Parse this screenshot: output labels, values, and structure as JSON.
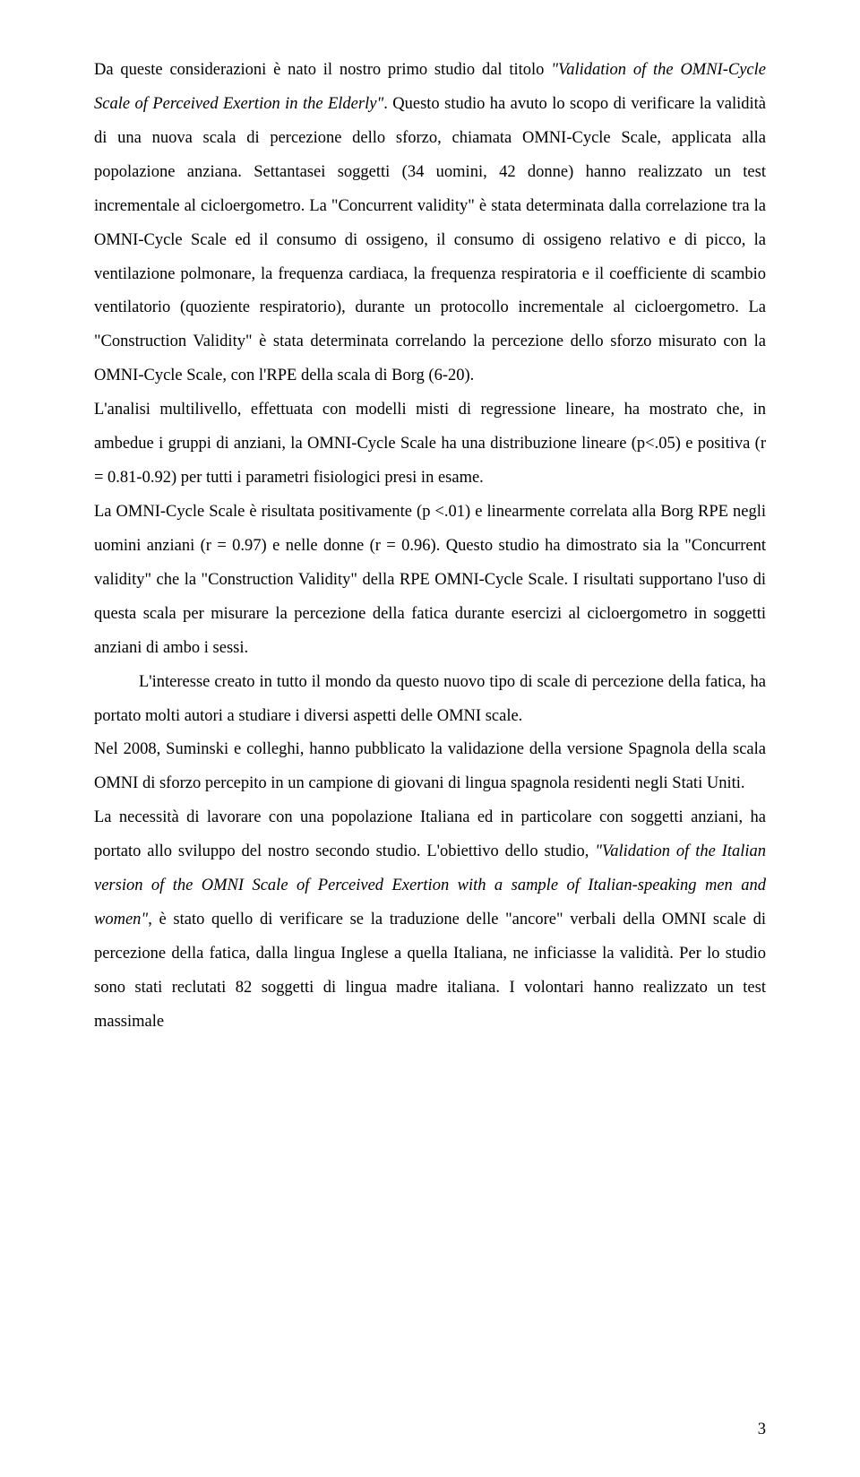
{
  "page": {
    "number": "3",
    "font_family": "Times New Roman",
    "font_size_pt": 13,
    "line_height": 2.05,
    "text_color": "#000000",
    "background_color": "#ffffff"
  },
  "paragraphs": {
    "p1_part1": "Da queste considerazioni è nato il nostro primo studio dal titolo ",
    "p1_italic": "\"Validation of the OMNI-Cycle Scale of Perceived Exertion in the Elderly\"",
    "p1_part2": ". Questo studio ha avuto lo scopo di verificare la validità di una nuova scala di percezione dello sforzo, chiamata OMNI-Cycle Scale, applicata alla popolazione anziana. Settantasei soggetti (34 uomini, 42 donne) hanno realizzato un test incrementale al cicloergometro. La \"Concurrent validity\" è stata determinata dalla correlazione tra la OMNI-Cycle Scale ed il consumo di ossigeno, il consumo di ossigeno relativo e di picco, la ventilazione polmonare, la frequenza cardiaca, la frequenza respiratoria e il coefficiente di scambio ventilatorio (quoziente respiratorio), durante un protocollo incrementale al cicloergometro. La \"Construction Validity\" è stata determinata correlando la percezione dello sforzo misurato con la OMNI-Cycle Scale, con l'RPE della scala di Borg (6-20).",
    "p2": "L'analisi multilivello, effettuata con modelli misti di regressione lineare, ha mostrato che, in ambedue i gruppi di anziani, la OMNI-Cycle Scale ha una distribuzione lineare (p<.05) e positiva (r = 0.81-0.92) per tutti i parametri fisiologici presi in esame.",
    "p3": "La OMNI-Cycle Scale è risultata positivamente (p <.01) e linearmente correlata alla Borg RPE negli uomini anziani (r = 0.97) e nelle donne (r = 0.96). Questo studio ha dimostrato sia la \"Concurrent validity\" che la \"Construction Validity\" della RPE OMNI-Cycle Scale. I risultati supportano l'uso di questa scala per misurare la percezione della fatica durante esercizi al cicloergometro in soggetti anziani di ambo i sessi.",
    "p4": "L'interesse creato in tutto il mondo da questo nuovo tipo di scale di percezione della fatica, ha portato molti autori a studiare i diversi aspetti delle OMNI scale.",
    "p5": "Nel 2008, Suminski e colleghi, hanno pubblicato la validazione della versione Spagnola della scala OMNI di sforzo percepito in un campione di giovani di lingua spagnola residenti negli Stati Uniti.",
    "p6_part1": "La necessità di lavorare con una popolazione Italiana ed in particolare con soggetti anziani, ha portato allo sviluppo del nostro secondo studio. L'obiettivo dello studio, ",
    "p6_italic": "\"Validation of the Italian version of the OMNI Scale of Perceived Exertion with a sample of Italian-speaking men and women\"",
    "p6_part2": ", è stato quello di verificare se la traduzione delle \"ancore\" verbali della OMNI scale di percezione della fatica, dalla lingua Inglese a quella Italiana, ne inficiasse la validità. Per lo studio sono stati reclutati 82 soggetti di lingua madre italiana. I volontari hanno realizzato un test massimale"
  }
}
